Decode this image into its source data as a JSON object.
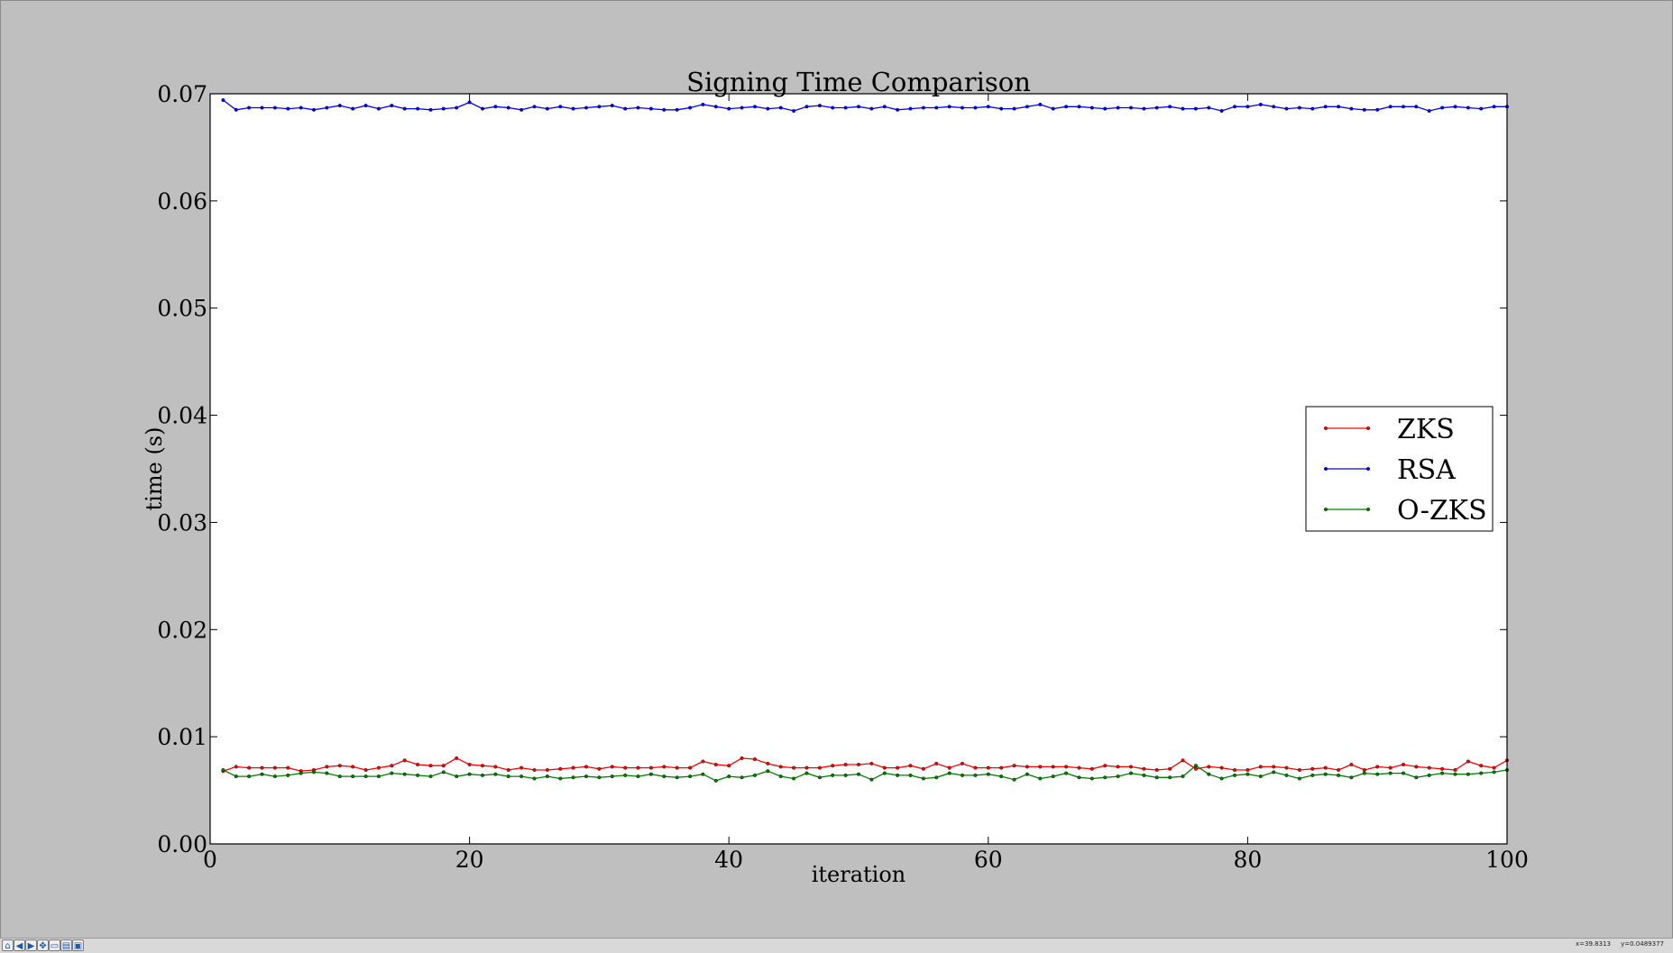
{
  "window": {
    "background": "#bfbfbf"
  },
  "toolbar": {
    "buttons": [
      {
        "name": "home-button",
        "icon": "home-icon",
        "glyph": "⌂"
      },
      {
        "name": "back-button",
        "icon": "back-arrow-icon",
        "glyph": "◀"
      },
      {
        "name": "forward-button",
        "icon": "forward-arrow-icon",
        "glyph": "▶"
      },
      {
        "name": "pan-button",
        "icon": "pan-move-icon",
        "glyph": "✥"
      },
      {
        "name": "zoom-button",
        "icon": "zoom-rect-icon",
        "glyph": "▭"
      },
      {
        "name": "subplots-button",
        "icon": "subplots-config-icon",
        "glyph": "▤"
      },
      {
        "name": "save-button",
        "icon": "save-disk-icon",
        "glyph": "▣"
      }
    ],
    "coord_x": "x=39.8313",
    "coord_y": "y=0.0489377"
  },
  "chart_data": {
    "type": "line",
    "title": "Signing Time Comparison",
    "xlabel": "iteration",
    "ylabel": "time (s)",
    "xlim": [
      0,
      100
    ],
    "ylim": [
      0.0,
      0.07
    ],
    "xticks": [
      0,
      20,
      40,
      60,
      80,
      100
    ],
    "xtick_labels": [
      "0",
      "20",
      "40",
      "60",
      "80",
      "100"
    ],
    "yticks": [
      0.0,
      0.01,
      0.02,
      0.03,
      0.04,
      0.05,
      0.06,
      0.07
    ],
    "ytick_labels": [
      "0.00",
      "0.01",
      "0.02",
      "0.03",
      "0.04",
      "0.05",
      "0.06",
      "0.07"
    ],
    "grid": false,
    "legend_position": "center-right",
    "x": [
      1,
      2,
      3,
      4,
      5,
      6,
      7,
      8,
      9,
      10,
      11,
      12,
      13,
      14,
      15,
      16,
      17,
      18,
      19,
      20,
      21,
      22,
      23,
      24,
      25,
      26,
      27,
      28,
      29,
      30,
      31,
      32,
      33,
      34,
      35,
      36,
      37,
      38,
      39,
      40,
      41,
      42,
      43,
      44,
      45,
      46,
      47,
      48,
      49,
      50,
      51,
      52,
      53,
      54,
      55,
      56,
      57,
      58,
      59,
      60,
      61,
      62,
      63,
      64,
      65,
      66,
      67,
      68,
      69,
      70,
      71,
      72,
      73,
      74,
      75,
      76,
      77,
      78,
      79,
      80,
      81,
      82,
      83,
      84,
      85,
      86,
      87,
      88,
      89,
      90,
      91,
      92,
      93,
      94,
      95,
      96,
      97,
      98,
      99,
      100
    ],
    "series": [
      {
        "name": "ZKS",
        "color": "#ff0000",
        "values": [
          0.0068,
          0.0072,
          0.0071,
          0.0071,
          0.0071,
          0.0071,
          0.0068,
          0.0069,
          0.0072,
          0.0073,
          0.0072,
          0.0069,
          0.0071,
          0.0073,
          0.0078,
          0.0074,
          0.0073,
          0.0073,
          0.008,
          0.0074,
          0.0073,
          0.0072,
          0.0069,
          0.0071,
          0.0069,
          0.0069,
          0.007,
          0.0071,
          0.0072,
          0.007,
          0.0072,
          0.0071,
          0.0071,
          0.0071,
          0.0072,
          0.0071,
          0.0071,
          0.0077,
          0.0074,
          0.0073,
          0.008,
          0.0079,
          0.0075,
          0.0072,
          0.0071,
          0.0071,
          0.0071,
          0.0073,
          0.0074,
          0.0074,
          0.0075,
          0.0071,
          0.0071,
          0.0073,
          0.007,
          0.0075,
          0.0071,
          0.0075,
          0.0071,
          0.0071,
          0.0071,
          0.0073,
          0.0072,
          0.0072,
          0.0072,
          0.0072,
          0.0071,
          0.007,
          0.0073,
          0.0072,
          0.0072,
          0.007,
          0.0069,
          0.007,
          0.0078,
          0.007,
          0.0072,
          0.0071,
          0.0069,
          0.0069,
          0.0072,
          0.0072,
          0.0071,
          0.0069,
          0.007,
          0.0071,
          0.0069,
          0.0074,
          0.0069,
          0.0072,
          0.0071,
          0.0074,
          0.0072,
          0.0071,
          0.007,
          0.0069,
          0.0077,
          0.0073,
          0.0071,
          0.0078
        ]
      },
      {
        "name": "RSA",
        "color": "#0000ff",
        "values": [
          0.0694,
          0.0685,
          0.0687,
          0.0687,
          0.0687,
          0.0686,
          0.0687,
          0.0685,
          0.0687,
          0.0689,
          0.0686,
          0.0689,
          0.0686,
          0.0689,
          0.0686,
          0.0686,
          0.0685,
          0.0686,
          0.0687,
          0.0692,
          0.0686,
          0.0688,
          0.0687,
          0.0685,
          0.0688,
          0.0686,
          0.0688,
          0.0686,
          0.0687,
          0.0688,
          0.0689,
          0.0686,
          0.0687,
          0.0686,
          0.0685,
          0.0685,
          0.0687,
          0.069,
          0.0688,
          0.0686,
          0.0687,
          0.0688,
          0.0686,
          0.0687,
          0.0684,
          0.0688,
          0.0689,
          0.0687,
          0.0687,
          0.0688,
          0.0686,
          0.0688,
          0.0685,
          0.0686,
          0.0687,
          0.0687,
          0.0688,
          0.0687,
          0.0687,
          0.0688,
          0.0686,
          0.0686,
          0.0688,
          0.069,
          0.0686,
          0.0688,
          0.0688,
          0.0687,
          0.0686,
          0.0687,
          0.0687,
          0.0686,
          0.0687,
          0.0688,
          0.0686,
          0.0686,
          0.0687,
          0.0684,
          0.0688,
          0.0688,
          0.069,
          0.0688,
          0.0686,
          0.0687,
          0.0686,
          0.0688,
          0.0688,
          0.0686,
          0.0685,
          0.0685,
          0.0688,
          0.0688,
          0.0688,
          0.0684,
          0.0687,
          0.0688,
          0.0687,
          0.0686,
          0.0688,
          0.0688
        ]
      },
      {
        "name": "O-ZKS",
        "color": "#008000",
        "values": [
          0.0069,
          0.0063,
          0.0063,
          0.0065,
          0.0063,
          0.0064,
          0.0066,
          0.0067,
          0.0066,
          0.0063,
          0.0063,
          0.0063,
          0.0063,
          0.0066,
          0.0065,
          0.0064,
          0.0063,
          0.0067,
          0.0063,
          0.0065,
          0.0064,
          0.0065,
          0.0063,
          0.0063,
          0.0061,
          0.0063,
          0.0061,
          0.0062,
          0.0063,
          0.0062,
          0.0063,
          0.0064,
          0.0063,
          0.0065,
          0.0063,
          0.0062,
          0.0063,
          0.0065,
          0.0059,
          0.0063,
          0.0062,
          0.0064,
          0.0068,
          0.0063,
          0.0061,
          0.0066,
          0.0062,
          0.0064,
          0.0064,
          0.0065,
          0.006,
          0.0066,
          0.0064,
          0.0064,
          0.0061,
          0.0062,
          0.0066,
          0.0064,
          0.0064,
          0.0065,
          0.0063,
          0.006,
          0.0065,
          0.0061,
          0.0063,
          0.0066,
          0.0062,
          0.0061,
          0.0062,
          0.0063,
          0.0066,
          0.0064,
          0.0062,
          0.0062,
          0.0063,
          0.0073,
          0.0065,
          0.0061,
          0.0064,
          0.0065,
          0.0063,
          0.0067,
          0.0064,
          0.0061,
          0.0064,
          0.0065,
          0.0064,
          0.0062,
          0.0066,
          0.0065,
          0.0066,
          0.0066,
          0.0062,
          0.0064,
          0.0066,
          0.0065,
          0.0065,
          0.0066,
          0.0067,
          0.0069
        ]
      }
    ]
  }
}
